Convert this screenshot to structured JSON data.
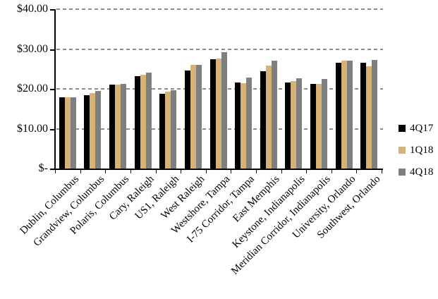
{
  "chart_data": {
    "type": "bar",
    "title": "",
    "xlabel": "",
    "ylabel": "",
    "categories": [
      "Dublin, Columbus",
      "Grandview, Columbus",
      "Polaris, Columbus",
      "Cary, Raleigh",
      "US1, Raleigh",
      "West Raleigh",
      "Westshore, Tampa",
      "I-75 Corridor, Tampa",
      "East Memphis",
      "Keystone, Indianapolis",
      "Meridian Corridor, Indianapolis",
      "University, Orlando",
      "Southwest, Orlando"
    ],
    "series": [
      {
        "name": "4Q17",
        "color": "#000000",
        "values": [
          17.8,
          18.4,
          21.0,
          23.2,
          18.7,
          24.6,
          27.4,
          21.6,
          24.5,
          21.6,
          21.2,
          26.5,
          26.6
        ]
      },
      {
        "name": "1Q18",
        "color": "#D6B277",
        "values": [
          17.8,
          19.0,
          21.0,
          23.5,
          19.3,
          26.0,
          27.6,
          21.5,
          25.9,
          22.0,
          21.2,
          27.1,
          25.6
        ]
      },
      {
        "name": "4Q18",
        "color": "#7F7F7F",
        "values": [
          17.9,
          19.5,
          21.2,
          24.0,
          19.7,
          26.0,
          29.2,
          22.9,
          27.0,
          22.6,
          22.5,
          27.1,
          27.3
        ]
      }
    ],
    "ylim": [
      0,
      40
    ],
    "y_ticks": [
      {
        "label": "$40.00",
        "value": 40
      },
      {
        "label": "$30.00",
        "value": 30
      },
      {
        "label": "$20.00",
        "value": 20
      },
      {
        "label": "$10.00",
        "value": 10
      },
      {
        "label": "$-",
        "value": 0
      }
    ],
    "grid": "horizontal-dashed",
    "grid_color": "#8C8C8C",
    "axis_color": "#000000",
    "legend_position": "right"
  }
}
